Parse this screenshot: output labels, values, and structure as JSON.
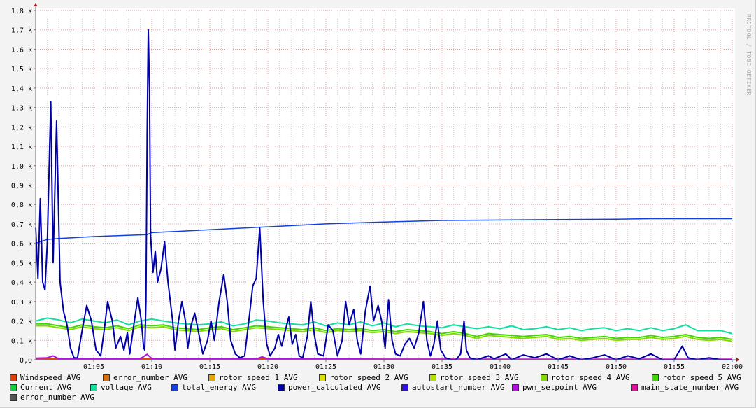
{
  "watermark": "RRDTOOL / TOBI OETIKER",
  "chart_data": {
    "type": "line",
    "title": "",
    "xlabel": "",
    "ylabel": "",
    "xlim_minutes": [
      0,
      60
    ],
    "ylim": [
      0,
      1800
    ],
    "grid": true,
    "legend_placement": "bottom",
    "y_ticks": [
      {
        "v": 0,
        "label": "0,0"
      },
      {
        "v": 100,
        "label": "0,1 k"
      },
      {
        "v": 200,
        "label": "0,2 k"
      },
      {
        "v": 300,
        "label": "0,3 k"
      },
      {
        "v": 400,
        "label": "0,4 k"
      },
      {
        "v": 500,
        "label": "0,5 k"
      },
      {
        "v": 600,
        "label": "0,6 k"
      },
      {
        "v": 700,
        "label": "0,7 k"
      },
      {
        "v": 800,
        "label": "0,8 k"
      },
      {
        "v": 900,
        "label": "0,9 k"
      },
      {
        "v": 1000,
        "label": "1,0 k"
      },
      {
        "v": 1100,
        "label": "1,1 k"
      },
      {
        "v": 1200,
        "label": "1,2 k"
      },
      {
        "v": 1300,
        "label": "1,3 k"
      },
      {
        "v": 1400,
        "label": "1,4 k"
      },
      {
        "v": 1500,
        "label": "1,5 k"
      },
      {
        "v": 1600,
        "label": "1,6 k"
      },
      {
        "v": 1700,
        "label": "1,7 k"
      },
      {
        "v": 1800,
        "label": "1,8 k"
      }
    ],
    "x_ticks": [
      {
        "v": 5,
        "label": "01:05"
      },
      {
        "v": 10,
        "label": "01:10"
      },
      {
        "v": 15,
        "label": "01:15"
      },
      {
        "v": 20,
        "label": "01:20"
      },
      {
        "v": 25,
        "label": "01:25"
      },
      {
        "v": 30,
        "label": "01:30"
      },
      {
        "v": 35,
        "label": "01:35"
      },
      {
        "v": 40,
        "label": "01:40"
      },
      {
        "v": 45,
        "label": "01:45"
      },
      {
        "v": 50,
        "label": "01:50"
      },
      {
        "v": 55,
        "label": "01:55"
      },
      {
        "v": 60,
        "label": "02:00"
      }
    ],
    "legend": [
      {
        "name": "Windspeed AVG",
        "color": "#e0400a"
      },
      {
        "name": "error_number AVG",
        "color": "#d8700c"
      },
      {
        "name": "rotor speed 1 AVG",
        "color": "#e0a800"
      },
      {
        "name": "rotor speed 2 AVG",
        "color": "#e0e000"
      },
      {
        "name": "rotor speed 3 AVG",
        "color": "#b4e000"
      },
      {
        "name": "rotor speed 4 AVG",
        "color": "#80dc00"
      },
      {
        "name": "rotor speed 5 AVG",
        "color": "#40d800"
      },
      {
        "name": "Current AVG",
        "color": "#10d040"
      },
      {
        "name": "voltage AVG",
        "color": "#10e0a0"
      },
      {
        "name": "total_energy AVG",
        "color": "#1040e0"
      },
      {
        "name": "power_calculated AVG",
        "color": "#0000a8"
      },
      {
        "name": "autostart_number AVG",
        "color": "#3010e0"
      },
      {
        "name": "pwm_setpoint AVG",
        "color": "#b010e0"
      },
      {
        "name": "main_state_number AVG",
        "color": "#e010a0"
      },
      {
        "name": "error_number AVG",
        "color": "#555555"
      }
    ],
    "series": [
      {
        "name": "Windspeed AVG",
        "color": "#e0400a",
        "width": 2,
        "x": [
          0,
          10,
          20,
          30,
          40,
          50,
          60
        ],
        "y": [
          4,
          5,
          4,
          3,
          2,
          2,
          2
        ]
      },
      {
        "name": "pwm_setpoint AVG",
        "color": "#b010e0",
        "width": 2,
        "x": [
          0,
          1,
          1.5,
          2,
          9,
          9.6,
          10,
          12,
          19,
          19.5,
          20,
          30,
          40,
          60
        ],
        "y": [
          8,
          10,
          20,
          5,
          5,
          28,
          6,
          4,
          4,
          15,
          5,
          3,
          2,
          2
        ]
      },
      {
        "name": "rotor speed 4 AVG",
        "color": "#80dc00",
        "width": 2,
        "x": [
          0,
          1,
          2,
          3,
          4,
          5,
          6,
          7,
          8,
          9,
          10,
          11,
          12,
          13,
          14,
          15,
          16,
          17,
          18,
          19,
          20,
          21,
          22,
          23,
          24,
          25,
          26,
          27,
          28,
          29,
          30,
          31,
          32,
          33,
          34,
          35,
          36,
          37,
          38,
          39,
          40,
          41,
          42,
          43,
          44,
          45,
          46,
          47,
          48,
          49,
          50,
          51,
          52,
          53,
          54,
          55,
          56,
          57,
          58,
          59,
          60
        ],
        "y": [
          175,
          175,
          165,
          155,
          170,
          160,
          155,
          165,
          150,
          170,
          165,
          170,
          155,
          150,
          145,
          155,
          160,
          145,
          155,
          165,
          160,
          155,
          150,
          145,
          155,
          140,
          150,
          145,
          150,
          140,
          145,
          135,
          145,
          140,
          135,
          125,
          135,
          125,
          110,
          125,
          120,
          115,
          110,
          115,
          120,
          105,
          110,
          100,
          105,
          110,
          100,
          105,
          105,
          115,
          105,
          110,
          120,
          105,
          100,
          105,
          95
        ]
      },
      {
        "name": "rotor speed 5 AVG",
        "color": "#40d800",
        "width": 2,
        "x": [
          0,
          1,
          2,
          3,
          4,
          5,
          6,
          7,
          8,
          9,
          10,
          11,
          12,
          13,
          14,
          15,
          16,
          17,
          18,
          19,
          20,
          21,
          22,
          23,
          24,
          25,
          26,
          27,
          28,
          29,
          30,
          31,
          32,
          33,
          34,
          35,
          36,
          37,
          38,
          39,
          40,
          41,
          42,
          43,
          44,
          45,
          46,
          47,
          48,
          49,
          50,
          51,
          52,
          53,
          54,
          55,
          56,
          57,
          58,
          59,
          60
        ],
        "y": [
          185,
          185,
          175,
          165,
          180,
          170,
          165,
          175,
          160,
          180,
          175,
          180,
          165,
          160,
          155,
          165,
          170,
          155,
          165,
          175,
          170,
          165,
          160,
          155,
          165,
          150,
          160,
          155,
          160,
          150,
          155,
          145,
          155,
          150,
          145,
          135,
          145,
          135,
          120,
          135,
          130,
          125,
          120,
          125,
          130,
          115,
          120,
          110,
          115,
          120,
          110,
          115,
          115,
          125,
          115,
          120,
          130,
          115,
          110,
          115,
          105
        ]
      },
      {
        "name": "voltage AVG",
        "color": "#10e0a0",
        "width": 2,
        "x": [
          0,
          1,
          2,
          3,
          4,
          5,
          6,
          7,
          8,
          9,
          10,
          11,
          12,
          13,
          14,
          15,
          16,
          17,
          18,
          19,
          20,
          21,
          22,
          23,
          24,
          25,
          26,
          27,
          28,
          29,
          30,
          31,
          32,
          33,
          34,
          35,
          36,
          37,
          38,
          39,
          40,
          41,
          42,
          43,
          44,
          45,
          46,
          47,
          48,
          49,
          50,
          51,
          52,
          53,
          54,
          55,
          56,
          57,
          58,
          59,
          60
        ],
        "y": [
          200,
          215,
          205,
          190,
          210,
          200,
          190,
          205,
          180,
          200,
          210,
          200,
          190,
          185,
          180,
          185,
          195,
          175,
          185,
          205,
          200,
          190,
          185,
          180,
          195,
          175,
          190,
          180,
          195,
          175,
          190,
          170,
          185,
          175,
          170,
          165,
          180,
          170,
          160,
          170,
          160,
          175,
          155,
          160,
          170,
          155,
          165,
          150,
          160,
          165,
          150,
          160,
          150,
          165,
          150,
          160,
          180,
          150,
          150,
          150,
          135
        ]
      },
      {
        "name": "total_energy AVG",
        "color": "#1040e0",
        "width": 1.5,
        "x": [
          0,
          1,
          2,
          5,
          9.6,
          10,
          15,
          20,
          25,
          30,
          35,
          40,
          45,
          50,
          53,
          60
        ],
        "y": [
          600,
          620,
          625,
          635,
          645,
          655,
          670,
          685,
          700,
          710,
          718,
          720,
          722,
          724,
          727,
          727
        ]
      },
      {
        "name": "power_calculated AVG",
        "color": "#0000a8",
        "width": 2,
        "x": [
          0,
          0.2,
          0.4,
          0.6,
          0.8,
          1.0,
          1.3,
          1.5,
          1.8,
          2.1,
          2.4,
          2.7,
          3.0,
          3.3,
          3.6,
          4.0,
          4.4,
          4.8,
          5.2,
          5.6,
          5.9,
          6.2,
          6.6,
          6.9,
          7.3,
          7.6,
          7.9,
          8.1,
          8.5,
          8.8,
          9.1,
          9.3,
          9.4,
          9.5,
          9.6,
          9.7,
          9.8,
          9.9,
          10.1,
          10.3,
          10.5,
          10.8,
          11.1,
          11.4,
          11.8,
          12.0,
          12.3,
          12.6,
          12.9,
          13.1,
          13.4,
          13.7,
          14.0,
          14.4,
          14.8,
          15.1,
          15.4,
          15.8,
          16.2,
          16.5,
          16.8,
          17.2,
          17.6,
          18.0,
          18.4,
          18.7,
          19.0,
          19.3,
          19.6,
          19.9,
          20.2,
          20.6,
          20.9,
          21.2,
          21.5,
          21.8,
          22.1,
          22.4,
          22.7,
          23.0,
          23.4,
          23.7,
          24.0,
          24.3,
          24.8,
          25.2,
          25.6,
          26.0,
          26.4,
          26.7,
          27.0,
          27.4,
          27.7,
          28.0,
          28.4,
          28.8,
          29.1,
          29.5,
          29.8,
          30.1,
          30.4,
          30.7,
          31.0,
          31.4,
          31.8,
          32.2,
          32.6,
          33.0,
          33.4,
          33.7,
          34.0,
          34.3,
          34.6,
          34.9,
          35.3,
          35.8,
          36.2,
          36.6,
          36.9,
          37.1,
          37.4,
          38,
          39,
          39.5,
          40.5,
          41,
          42,
          43,
          44,
          45,
          46,
          47,
          48,
          49,
          50,
          51,
          52,
          53,
          54,
          55,
          55.7,
          56.2,
          57,
          58,
          59,
          60
        ],
        "y": [
          680,
          420,
          830,
          400,
          360,
          600,
          1330,
          500,
          1230,
          400,
          250,
          180,
          60,
          10,
          10,
          150,
          280,
          200,
          50,
          20,
          150,
          300,
          200,
          60,
          120,
          50,
          140,
          30,
          200,
          320,
          200,
          60,
          50,
          300,
          1170,
          1700,
          1400,
          640,
          450,
          560,
          400,
          470,
          610,
          400,
          200,
          50,
          200,
          300,
          200,
          60,
          180,
          240,
          150,
          30,
          100,
          200,
          100,
          300,
          440,
          300,
          100,
          30,
          10,
          20,
          220,
          380,
          420,
          680,
          300,
          80,
          20,
          60,
          130,
          70,
          150,
          220,
          80,
          130,
          20,
          10,
          120,
          300,
          130,
          30,
          20,
          180,
          150,
          20,
          100,
          300,
          180,
          260,
          100,
          30,
          250,
          380,
          200,
          280,
          200,
          60,
          310,
          100,
          30,
          20,
          80,
          110,
          60,
          140,
          300,
          100,
          20,
          80,
          200,
          50,
          10,
          0,
          0,
          30,
          200,
          50,
          10,
          0,
          20,
          5,
          30,
          0,
          25,
          10,
          30,
          0,
          20,
          0,
          10,
          25,
          0,
          20,
          5,
          30,
          0,
          0,
          70,
          10,
          0,
          10,
          0,
          0
        ]
      }
    ]
  }
}
